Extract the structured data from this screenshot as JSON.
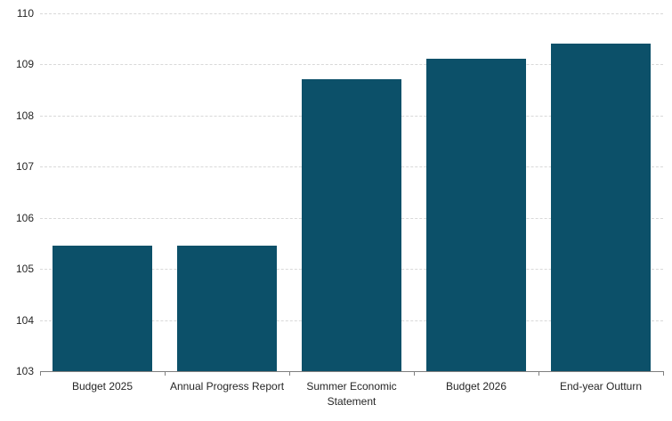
{
  "chart_data": {
    "type": "bar",
    "title": "",
    "xlabel": "",
    "ylabel": "",
    "categories": [
      "Budget 2025",
      "Annual Progress Report",
      "Summer Economic Statement",
      "Budget 2026",
      "End-year Outturn"
    ],
    "values": [
      105.45,
      105.45,
      108.7,
      109.1,
      109.4
    ],
    "ylim": [
      103,
      110
    ],
    "ytick_step": 1,
    "ytick_labels": [
      "103",
      "104",
      "105",
      "106",
      "107",
      "108",
      "109",
      "110"
    ],
    "grid": "horizontal-dashed",
    "legend": "none",
    "colors": {
      "bar_fill": "#0c5069",
      "gridline": "#d9d9d9",
      "axis_line": "#7f7f7f",
      "tick_text": "#262626",
      "background": "#ffffff"
    }
  }
}
